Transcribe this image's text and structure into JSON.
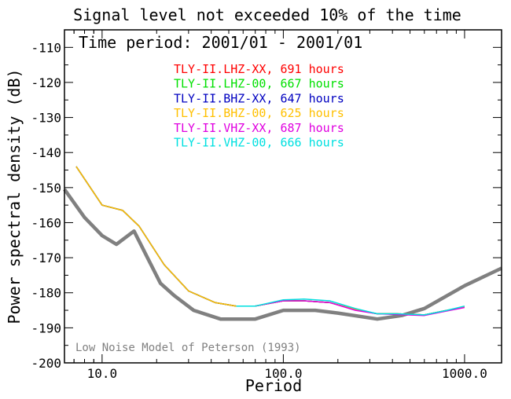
{
  "chart_data": {
    "type": "line",
    "title": "Signal level not exceeded 10% of the time",
    "subtitle": "Time period: 2001/01 - 2001/01",
    "xlabel": "Period",
    "ylabel": "Power spectral density (dB)",
    "xscale": "log",
    "xlim": [
      6.2,
      1600
    ],
    "ylim": [
      -200,
      -105
    ],
    "y_ticks": [
      -200,
      -190,
      -180,
      -170,
      -160,
      -150,
      -140,
      -130,
      -120,
      -110
    ],
    "y_tick_labels": [
      "-200",
      "-190",
      "-180",
      "-170",
      "-160",
      "-150",
      "-140",
      "-130",
      "-120",
      "-110"
    ],
    "x_ticks": [
      10,
      100,
      1000
    ],
    "x_tick_labels": [
      "10.0",
      "100.0",
      "1000.0"
    ],
    "grid": false,
    "legend_position": "top-center",
    "annotation": "Low Noise Model of Peterson (1993)",
    "annotation_color": "#808080",
    "series": [
      {
        "name": "TLY-II.LHZ-XX, 691 hours",
        "color": "#ff0000",
        "x": [
          7.2,
          10,
          13,
          16,
          22,
          30,
          42,
          55,
          70,
          100,
          130,
          180,
          250,
          330,
          420,
          600,
          800,
          1000
        ],
        "y": [
          -144.0,
          -155.0,
          -156.5,
          -161.0,
          -172.0,
          -179.5,
          -182.8,
          -183.8,
          -183.8,
          -182.3,
          -182.3,
          -182.8,
          -184.8,
          -186.0,
          -186.0,
          -186.3,
          -185.0,
          -184.0
        ]
      },
      {
        "name": "TLY-II.LHZ-00, 667 hours",
        "color": "#00e000",
        "x": [
          7.2,
          10,
          13,
          16,
          22,
          30,
          42,
          55,
          70,
          100,
          130,
          180,
          250,
          330,
          420,
          600,
          800,
          1000
        ],
        "y": [
          -144.0,
          -155.0,
          -156.5,
          -161.0,
          -172.0,
          -179.5,
          -182.8,
          -183.8,
          -183.8,
          -182.3,
          -182.3,
          -182.8,
          -184.8,
          -186.0,
          -186.0,
          -186.3,
          -185.0,
          -184.0
        ]
      },
      {
        "name": "TLY-II.BHZ-XX, 647 hours",
        "color": "#0000c0",
        "x": [
          7.2,
          10,
          13,
          16,
          22,
          30,
          42,
          55,
          70,
          100,
          130,
          180,
          250,
          330,
          420,
          600,
          800,
          1000
        ],
        "y": [
          -144.0,
          -155.0,
          -156.5,
          -161.0,
          -172.0,
          -179.5,
          -182.8,
          -183.8,
          -183.8,
          -182.3,
          -182.3,
          -182.8,
          -184.8,
          -186.0,
          -186.0,
          -186.3,
          -185.0,
          -184.0
        ]
      },
      {
        "name": "TLY-II.BHZ-00, 625 hours",
        "color": "#ffc000",
        "x": [
          7.2,
          10,
          13,
          16,
          22,
          30,
          42,
          55,
          70,
          100,
          130,
          180,
          250,
          330,
          420,
          600,
          800,
          1000
        ],
        "y": [
          -144.0,
          -155.0,
          -156.5,
          -161.0,
          -172.0,
          -179.5,
          -182.8,
          -183.8,
          -183.8,
          -182.3,
          -182.3,
          -182.8,
          -184.8,
          -186.0,
          -186.0,
          -186.3,
          -185.0,
          -184.0
        ]
      },
      {
        "name": "TLY-II.VHZ-XX, 687 hours",
        "color": "#e000e0",
        "x": [
          55,
          70,
          100,
          130,
          180,
          250,
          330,
          420,
          600,
          800,
          1000
        ],
        "y": [
          -183.8,
          -183.8,
          -182.3,
          -182.3,
          -182.8,
          -185.0,
          -186.0,
          -186.2,
          -186.5,
          -185.2,
          -184.2
        ]
      },
      {
        "name": "TLY-II.VHZ-00, 666 hours",
        "color": "#00e0e0",
        "x": [
          55,
          70,
          100,
          130,
          180,
          250,
          330,
          420,
          600,
          800,
          1000
        ],
        "y": [
          -183.8,
          -183.8,
          -182.0,
          -181.8,
          -182.3,
          -184.5,
          -186.0,
          -186.0,
          -186.3,
          -185.0,
          -183.8
        ]
      },
      {
        "name": "",
        "color": "#808080",
        "role": "low-noise-model",
        "x": [
          6.2,
          8,
          10,
          12,
          15,
          18,
          21,
          25,
          32,
          45,
          70,
          100,
          150,
          200,
          330,
          450,
          600,
          1000,
          1600
        ],
        "y": [
          -150.5,
          -158.5,
          -163.7,
          -166.2,
          -162.4,
          -170.5,
          -177.3,
          -180.8,
          -185.0,
          -187.5,
          -187.5,
          -185.0,
          -185.0,
          -185.8,
          -187.5,
          -186.5,
          -184.5,
          -178.0,
          -173.0
        ]
      }
    ]
  }
}
